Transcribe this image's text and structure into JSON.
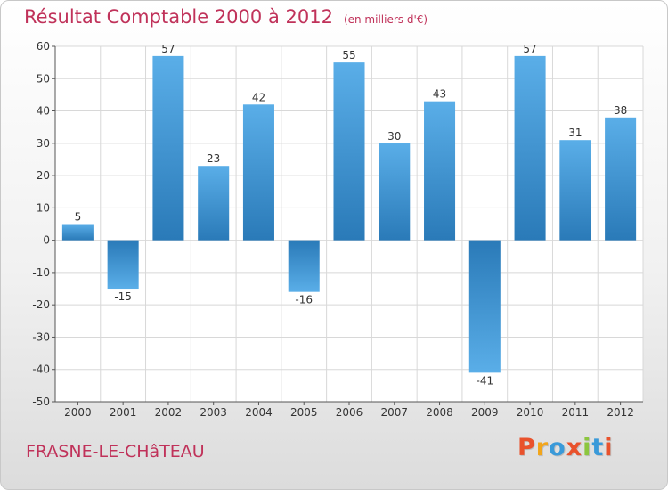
{
  "chart_data": {
    "type": "bar",
    "title": "Résultat Comptable 2000 à 2012",
    "subtitle": "(en milliers d'€)",
    "categories": [
      "2000",
      "2001",
      "2002",
      "2003",
      "2004",
      "2005",
      "2006",
      "2007",
      "2008",
      "2009",
      "2010",
      "2011",
      "2012"
    ],
    "values": [
      5,
      -15,
      57,
      23,
      42,
      -16,
      55,
      30,
      43,
      -41,
      57,
      31,
      38
    ],
    "ylim": [
      -50,
      60
    ],
    "yticks": [
      60,
      50,
      40,
      30,
      20,
      10,
      0,
      -10,
      -20,
      -30,
      -40,
      -50
    ],
    "grid": true,
    "xlabel": "",
    "ylabel": ""
  },
  "footer": {
    "place_name": "FRASNE-LE-CHâTEAU",
    "brand": "Proxiti"
  },
  "colors": {
    "title": "#c0325a",
    "bar_light": "#5aaee8",
    "bar_dark": "#2a7ab8",
    "grid": "#d8d8d8",
    "axis": "#555555",
    "brand_letters": [
      "#e9522c",
      "#f2a51a",
      "#3a9ad9",
      "#e9522c",
      "#8cc63f",
      "#3a9ad9",
      "#e9522c"
    ]
  }
}
